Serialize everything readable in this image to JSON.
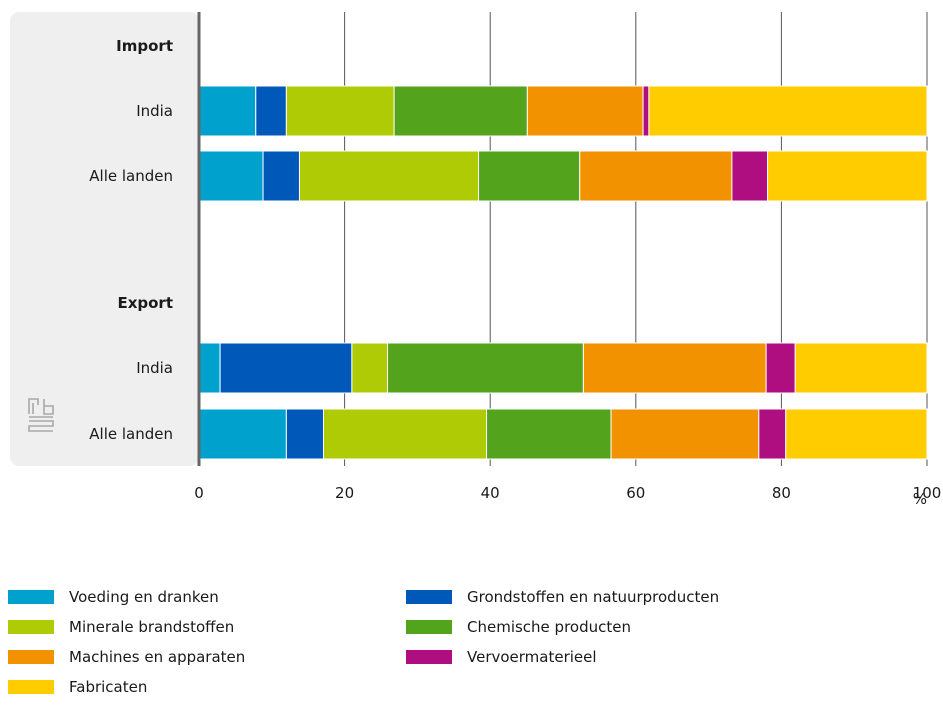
{
  "chart_data": {
    "type": "bar",
    "orientation": "horizontal",
    "stacked": true,
    "groups": [
      {
        "label": "Import",
        "rows": [
          {
            "label": "India",
            "values": [
              7.8,
              4.2,
              14.8,
              18.3,
              15.9,
              0.8,
              38.2
            ]
          },
          {
            "label": "Alle landen",
            "values": [
              8.8,
              5.0,
              24.6,
              13.9,
              20.9,
              4.9,
              21.9
            ]
          }
        ]
      },
      {
        "label": "Export",
        "rows": [
          {
            "label": "India",
            "values": [
              2.9,
              18.1,
              4.9,
              26.9,
              25.1,
              4.0,
              18.1
            ]
          },
          {
            "label": "Alle landen",
            "values": [
              12.0,
              5.1,
              22.4,
              17.1,
              20.3,
              3.7,
              19.4
            ]
          }
        ]
      }
    ],
    "series": [
      {
        "name": "Voeding en dranken",
        "color": "#00a1cd"
      },
      {
        "name": "Grondstoffen en natuurproducten",
        "color": "#0058b8"
      },
      {
        "name": "Minerale brandstoffen",
        "color": "#afcb05"
      },
      {
        "name": "Chemische producten",
        "color": "#53a31d"
      },
      {
        "name": "Machines en apparaten",
        "color": "#f39200"
      },
      {
        "name": "Vervoermaterieel",
        "color": "#af0e80"
      },
      {
        "name": "Fabricaten",
        "color": "#ffcc00"
      }
    ],
    "xlim": [
      0,
      100
    ],
    "xticks": [
      "0",
      "20",
      "40",
      "60",
      "80",
      "100"
    ],
    "xlabel": "%",
    "grid": true,
    "legend_position": "bottom"
  },
  "logo": {
    "name": "cbs",
    "color": "#a8a8a8"
  },
  "colors": {
    "panel": "#efefef",
    "axis": "#666666",
    "grid": "#555555"
  }
}
